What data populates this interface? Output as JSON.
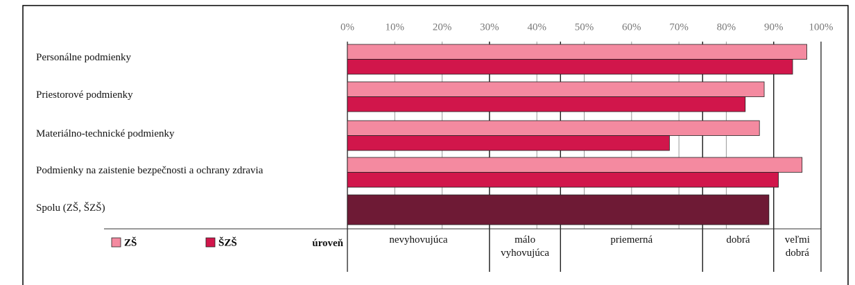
{
  "chart_data": {
    "type": "bar",
    "categories": [
      "Personálne podmienky",
      "Priestorové podmienky",
      "Materiálno-technické podmienky",
      "Podmienky na zaistenie bezpečnosti a ochrany zdravia",
      "Spolu (ZŠ, ŠZŠ)"
    ],
    "series": [
      {
        "name": "ZŠ",
        "color": "#f48aa0",
        "values": [
          97,
          88,
          87,
          96,
          null
        ]
      },
      {
        "name": "ŠZŠ",
        "color": "#d1164b",
        "values": [
          94,
          84,
          68,
          91,
          null
        ]
      }
    ],
    "total_value": 89,
    "total_color": "#6e1a35",
    "xlim": [
      0,
      100
    ],
    "xticks": [
      {
        "value": 0,
        "label": "0%"
      },
      {
        "value": 10,
        "label": "10%"
      },
      {
        "value": 20,
        "label": "20%"
      },
      {
        "value": 30,
        "label": "30%"
      },
      {
        "value": 40,
        "label": "40%"
      },
      {
        "value": 50,
        "label": "50%"
      },
      {
        "value": 60,
        "label": "60%"
      },
      {
        "value": 70,
        "label": "70%"
      },
      {
        "value": 80,
        "label": "80%"
      },
      {
        "value": 90,
        "label": "90%"
      },
      {
        "value": 100,
        "label": "100%"
      }
    ],
    "grid": true,
    "level_title": "úroveň",
    "levels": [
      {
        "label": "nevyhovujúca",
        "from": 0,
        "to": 30
      },
      {
        "label": "málo vyhovujúca",
        "from": 30,
        "to": 45
      },
      {
        "label": "priemerná",
        "from": 45,
        "to": 75
      },
      {
        "label": "dobrá",
        "from": 75,
        "to": 90
      },
      {
        "label": "veľmi dobrá",
        "from": 90,
        "to": 100
      }
    ]
  }
}
